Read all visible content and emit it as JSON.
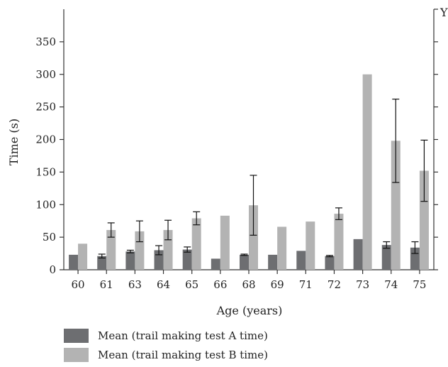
{
  "chart_data": {
    "type": "bar",
    "title": "",
    "xlabel": "Age (years)",
    "ylabel": "Time (s)",
    "right_axis_label": "Y",
    "ylim": [
      0,
      400
    ],
    "yticks": [
      0,
      50,
      100,
      150,
      200,
      250,
      300,
      350
    ],
    "categories": [
      "60",
      "61",
      "63",
      "64",
      "65",
      "66",
      "68",
      "69",
      "71",
      "72",
      "73",
      "74",
      "75"
    ],
    "grid": false,
    "legend_position": "bottom-left",
    "series": [
      {
        "name": "Mean (trail making test A time)",
        "color": "#6d6e71",
        "values": [
          23,
          21,
          28,
          30,
          31,
          17,
          23,
          23,
          29,
          21,
          47,
          38,
          34
        ],
        "error": [
          0,
          3,
          2,
          7,
          4,
          0,
          1,
          0,
          0,
          1,
          0,
          5,
          9
        ]
      },
      {
        "name": "Mean (trail making test B time)",
        "color": "#b3b3b3",
        "values": [
          40,
          61,
          59,
          61,
          79,
          83,
          99,
          66,
          74,
          86,
          300,
          198,
          152
        ],
        "error": [
          0,
          11,
          16,
          15,
          10,
          0,
          46,
          0,
          0,
          9,
          0,
          64,
          47
        ]
      }
    ]
  }
}
